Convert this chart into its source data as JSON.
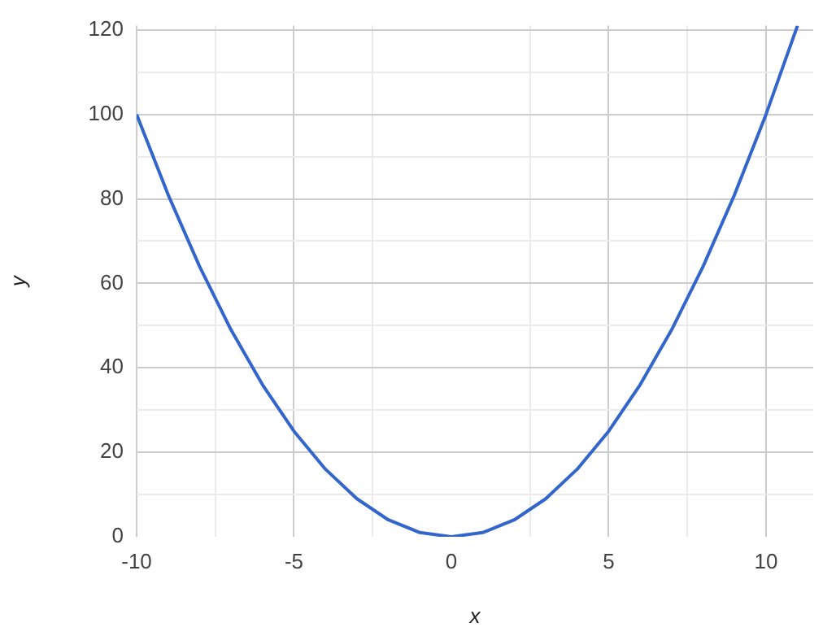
{
  "chart_data": {
    "type": "line",
    "xlabel": "x",
    "ylabel": "y",
    "x": [
      -10,
      -9,
      -8,
      -7,
      -6,
      -5,
      -4,
      -3,
      -2,
      -1,
      0,
      1,
      2,
      3,
      4,
      5,
      6,
      7,
      8,
      9,
      10,
      11
    ],
    "series": [
      {
        "color": "#3366cc",
        "values": [
          100,
          81,
          64,
          49,
          36,
          25,
          16,
          9,
          4,
          1,
          0,
          1,
          4,
          9,
          16,
          25,
          36,
          49,
          64,
          81,
          100,
          121
        ]
      }
    ],
    "xlim": [
      -10,
      11.5
    ],
    "xticks": [
      -10,
      {
        "value": -7.5,
        "label": null
      },
      -5,
      {
        "value": -2.5,
        "label": null
      },
      0,
      {
        "value": 2.5,
        "label": null
      },
      5,
      {
        "value": 7.5,
        "label": null
      },
      10
    ],
    "ylim": [
      0,
      121
    ],
    "yticks": [
      0,
      {
        "value": 10,
        "label": null
      },
      20,
      {
        "value": 30,
        "label": null
      },
      40,
      {
        "value": 50,
        "label": null
      },
      60,
      {
        "value": 70,
        "label": null
      },
      80,
      {
        "value": 90,
        "label": null
      },
      100,
      {
        "value": 110,
        "label": null
      },
      120
    ],
    "grid": true,
    "legend": false,
    "marker": "none",
    "line_style": "solid"
  }
}
